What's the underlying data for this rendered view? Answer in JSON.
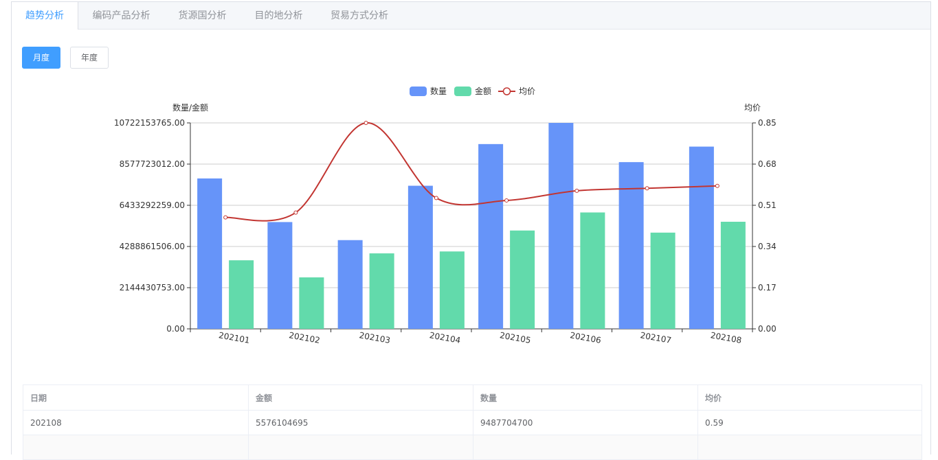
{
  "tabs": [
    {
      "label": "趋势分析",
      "active": true
    },
    {
      "label": "编码产品分析",
      "active": false
    },
    {
      "label": "货源国分析",
      "active": false
    },
    {
      "label": "目的地分析",
      "active": false
    },
    {
      "label": "贸易方式分析",
      "active": false
    }
  ],
  "mode_buttons": {
    "monthly": "月度",
    "yearly": "年度",
    "selected": "monthly"
  },
  "colors": {
    "accent": "#409eff",
    "quantity": "#6694f9",
    "amount": "#62daab",
    "avg_price": "#c23531"
  },
  "chart_data": {
    "type": "bar",
    "legend": [
      "数量",
      "金额",
      "均价"
    ],
    "legend_position": "top-center",
    "grid": true,
    "categories": [
      "202101",
      "202102",
      "202103",
      "202104",
      "202105",
      "202106",
      "202107",
      "202108"
    ],
    "series": [
      {
        "name": "数量",
        "type": "bar",
        "axis": "left",
        "values": [
          7830000000,
          5560000000,
          4620000000,
          7450000000,
          9620000000,
          10722153765,
          8680000000,
          9487704700
        ]
      },
      {
        "name": "金额",
        "type": "bar",
        "axis": "left",
        "values": [
          3570000000,
          2680000000,
          3930000000,
          4030000000,
          5120000000,
          6060000000,
          5010000000,
          5576104695
        ]
      },
      {
        "name": "均价",
        "type": "line",
        "smooth": true,
        "axis": "right",
        "values": [
          0.46,
          0.48,
          0.85,
          0.54,
          0.53,
          0.57,
          0.58,
          0.59
        ]
      }
    ],
    "y_left": {
      "label": "数量/金额",
      "ticks": [
        "0.00",
        "2144430753.00",
        "4288861506.00",
        "6433292259.00",
        "8577723012.00",
        "10722153765.00"
      ],
      "ylim": [
        0,
        10722153765
      ]
    },
    "y_right": {
      "label": "均价",
      "ticks": [
        "0.00",
        "0.17",
        "0.34",
        "0.51",
        "0.68",
        "0.85"
      ],
      "ylim": [
        0,
        0.85
      ]
    }
  },
  "table": {
    "headers": [
      "日期",
      "金额",
      "数量",
      "均价"
    ],
    "rows": [
      [
        "202108",
        "5576104695",
        "9487704700",
        "0.59"
      ],
      [
        "",
        "",
        "",
        ""
      ]
    ]
  }
}
